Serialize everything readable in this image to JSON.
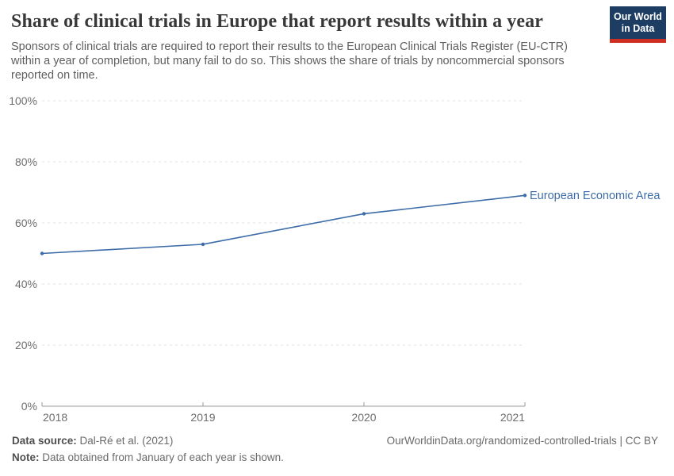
{
  "header": {
    "title": "Share of clinical trials in Europe that report results within a year",
    "subtitle": "Sponsors of clinical trials are required to report their results to the European Clinical Trials Register (EU-CTR) within a year of completion, but many fail to do so. This shows the share of trials by noncommercial sponsors reported on time.",
    "logo": {
      "line1": "Our World",
      "line2": "in Data"
    }
  },
  "chart_data": {
    "type": "line",
    "title": "Share of clinical trials in Europe that report results within a year",
    "x": [
      2018,
      2019,
      2020,
      2021
    ],
    "x_tick_labels": [
      "2018",
      "2019",
      "2020",
      "2021"
    ],
    "series": [
      {
        "name": "European Economic Area",
        "values": [
          50,
          53,
          63,
          69
        ],
        "color": "#3d6ca8"
      }
    ],
    "ylim": [
      0,
      100
    ],
    "yticks": [
      0,
      20,
      40,
      60,
      80,
      100
    ],
    "ytick_suffix": "%",
    "grid": "horizontal-dashed",
    "legend_position": "end-of-line-label",
    "note": "Data obtained from January of each year is shown."
  },
  "colors": {
    "accent_blue": "#3d6ca8",
    "grid": "#e2e2e2",
    "axis": "#9a9a9a",
    "tick_label": "#6e6e6e",
    "logo_navy": "#1d3d63",
    "logo_red": "#cf2e23"
  },
  "footer": {
    "source_label": "Data source:",
    "source_value": " Dal-Ré et al. (2021)",
    "note_label": "Note:",
    "note_value": " Data obtained from January of each year is shown.",
    "link": "OurWorldinData.org/randomized-controlled-trials | CC BY"
  }
}
